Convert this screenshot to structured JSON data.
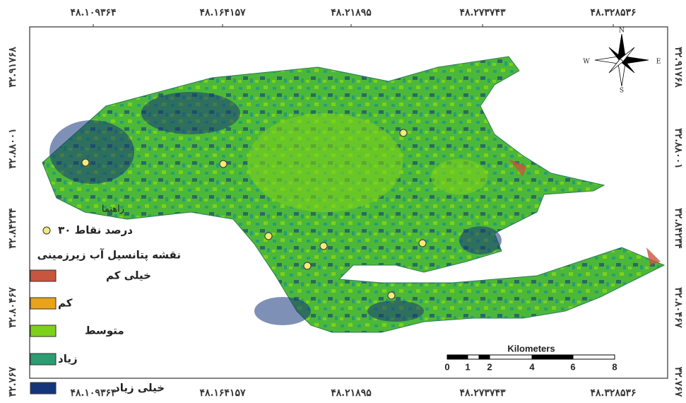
{
  "top_coords": [
    "۴۸.۱۰۹۳۶۴",
    "۴۸.۱۶۴۱۵۷",
    "۴۸.۲۱۸۹۵",
    "۴۸.۲۷۳۷۴۳",
    "۴۸.۳۲۸۵۳۶"
  ],
  "bottom_coords": [
    "۴۸.۱۰۹۳۶۴",
    "۴۸.۱۶۴۱۵۷",
    "۴۸.۲۱۸۹۵",
    "۴۸.۲۷۳۷۴۳",
    "۴۸.۳۲۸۵۳۶"
  ],
  "left_coords": [
    "۳۲.۹۱۷۶۸",
    "۳۲.۸۸۰۰۱",
    "۳۲.۸۴۲۳۴",
    "۳۲.۸۰۴۶۷",
    "۳۲.۷۶۷"
  ],
  "right_coords": [
    "۳۲.۹۱۷۶۸",
    "۳۲.۸۸۰۰۱",
    "۳۲.۸۴۲۳۴",
    "۳۲.۸۰۴۶۷",
    "۳۲.۷۶۷"
  ],
  "legend": {
    "heading": "راهنما",
    "points_label": "درصد نقاط ۳۰",
    "title": "نقشه پتانسیل آب زیرزمینی",
    "classes": [
      {
        "label": "خیلی کم",
        "color": "#c8553d"
      },
      {
        "label": "کم",
        "color": "#e8a317"
      },
      {
        "label": "متوسط",
        "color": "#7cd11a"
      },
      {
        "label": "زیاد",
        "color": "#2a9d72"
      },
      {
        "label": "خیلی زیاد",
        "color": "#15357a"
      }
    ]
  },
  "scale_bar": {
    "unit": "Kilometers",
    "ticks": [
      0,
      1,
      2,
      4,
      6,
      8
    ]
  },
  "compass": {
    "north": "N",
    "south": "S",
    "east": "E",
    "west": "W"
  }
}
